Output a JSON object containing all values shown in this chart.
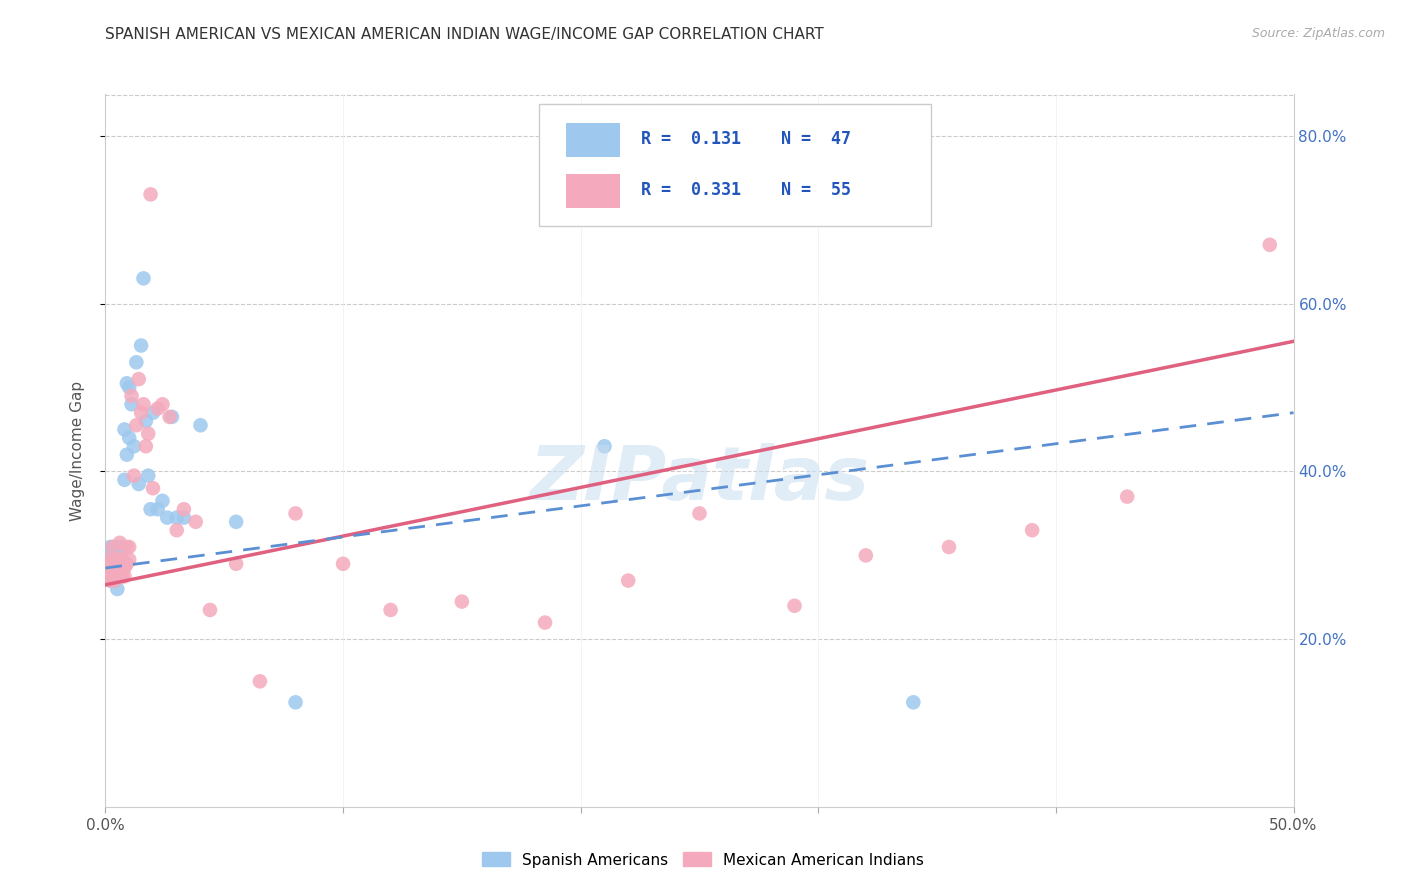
{
  "title": "SPANISH AMERICAN VS MEXICAN AMERICAN INDIAN WAGE/INCOME GAP CORRELATION CHART",
  "source": "Source: ZipAtlas.com",
  "ylabel": "Wage/Income Gap",
  "legend_label1": "Spanish Americans",
  "legend_label2": "Mexican American Indians",
  "blue_color": "#9EC8EE",
  "pink_color": "#F4AABC",
  "blue_line_color": "#5B8FD4",
  "pink_line_color": "#E06080",
  "watermark": "ZIPatlas",
  "blue_x": [
    0.001,
    0.001,
    0.002,
    0.002,
    0.002,
    0.003,
    0.003,
    0.003,
    0.004,
    0.004,
    0.004,
    0.005,
    0.005,
    0.005,
    0.005,
    0.006,
    0.006,
    0.006,
    0.007,
    0.007,
    0.008,
    0.008,
    0.009,
    0.009,
    0.01,
    0.01,
    0.011,
    0.012,
    0.013,
    0.014,
    0.015,
    0.016,
    0.017,
    0.018,
    0.019,
    0.02,
    0.022,
    0.024,
    0.026,
    0.028,
    0.03,
    0.033,
    0.04,
    0.055,
    0.08,
    0.21,
    0.34
  ],
  "blue_y": [
    0.28,
    0.295,
    0.27,
    0.29,
    0.31,
    0.28,
    0.295,
    0.31,
    0.275,
    0.29,
    0.305,
    0.285,
    0.295,
    0.31,
    0.26,
    0.285,
    0.3,
    0.275,
    0.295,
    0.31,
    0.45,
    0.39,
    0.505,
    0.42,
    0.5,
    0.44,
    0.48,
    0.43,
    0.53,
    0.385,
    0.55,
    0.63,
    0.46,
    0.395,
    0.355,
    0.47,
    0.355,
    0.365,
    0.345,
    0.465,
    0.345,
    0.345,
    0.455,
    0.34,
    0.125,
    0.43,
    0.125
  ],
  "pink_x": [
    0.001,
    0.001,
    0.002,
    0.002,
    0.003,
    0.003,
    0.003,
    0.004,
    0.004,
    0.004,
    0.005,
    0.005,
    0.006,
    0.006,
    0.006,
    0.007,
    0.007,
    0.008,
    0.008,
    0.009,
    0.009,
    0.01,
    0.01,
    0.011,
    0.012,
    0.013,
    0.014,
    0.015,
    0.016,
    0.017,
    0.018,
    0.019,
    0.02,
    0.022,
    0.024,
    0.027,
    0.03,
    0.033,
    0.038,
    0.044,
    0.055,
    0.065,
    0.08,
    0.1,
    0.12,
    0.15,
    0.185,
    0.22,
    0.25,
    0.29,
    0.32,
    0.355,
    0.39,
    0.43,
    0.49
  ],
  "pink_y": [
    0.275,
    0.295,
    0.27,
    0.29,
    0.275,
    0.29,
    0.31,
    0.27,
    0.285,
    0.295,
    0.28,
    0.295,
    0.28,
    0.295,
    0.315,
    0.275,
    0.295,
    0.285,
    0.275,
    0.29,
    0.31,
    0.295,
    0.31,
    0.49,
    0.395,
    0.455,
    0.51,
    0.47,
    0.48,
    0.43,
    0.445,
    0.73,
    0.38,
    0.475,
    0.48,
    0.465,
    0.33,
    0.355,
    0.34,
    0.235,
    0.29,
    0.15,
    0.35,
    0.29,
    0.235,
    0.245,
    0.22,
    0.27,
    0.35,
    0.24,
    0.3,
    0.31,
    0.33,
    0.37,
    0.67
  ]
}
